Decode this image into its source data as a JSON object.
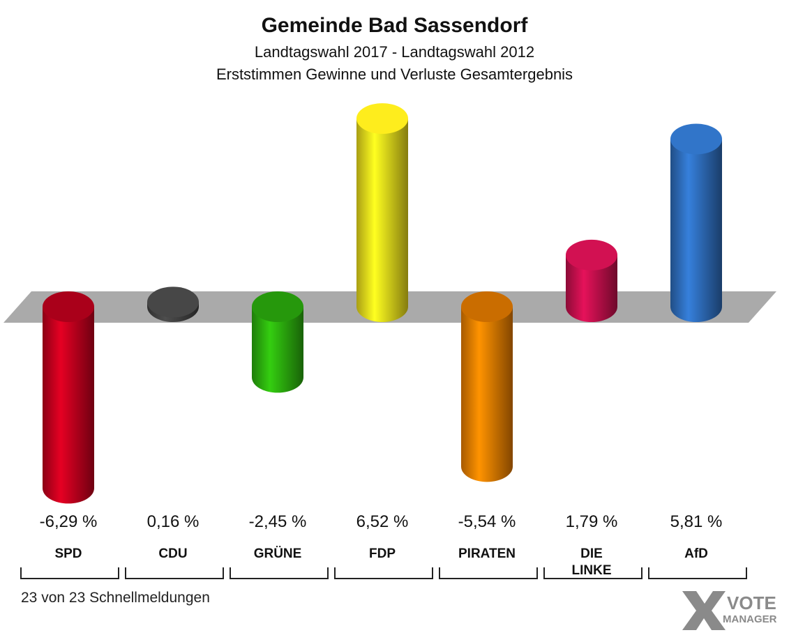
{
  "chart_data": {
    "type": "bar",
    "title": "Gemeinde Bad Sassendorf",
    "subtitle": [
      "Landtagswahl 2017 - Landtagswahl 2012",
      "Erststimmen Gewinne und Verluste Gesamtergebnis"
    ],
    "categories": [
      "SPD",
      "CDU",
      "GRÜNE",
      "FDP",
      "PIRATEN",
      "DIE LINKE",
      "AfD"
    ],
    "values": [
      -6.29,
      0.16,
      -2.45,
      6.52,
      -5.54,
      1.79,
      5.81
    ],
    "value_labels": [
      "-6,29 %",
      "0,16 %",
      "-2,45 %",
      "6,52 %",
      "-5,54 %",
      "1,79 %",
      "5,81 %"
    ],
    "colors": [
      "#c8001e",
      "#444444",
      "#2db30e",
      "#f2e21c",
      "#ee8000",
      "#c8104e",
      "#2f6fbf"
    ],
    "footnote": "23 von 23 Schnellmeldungen",
    "logo": [
      "VOTE",
      "MANAGER"
    ]
  }
}
